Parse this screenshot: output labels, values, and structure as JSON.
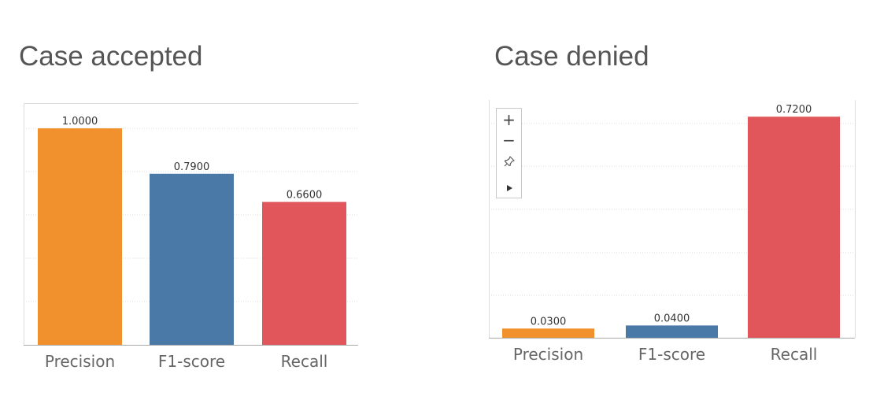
{
  "chart_data": [
    {
      "type": "bar",
      "title": "Case accepted",
      "categories": [
        "Precision",
        "F1-score",
        "Recall"
      ],
      "values": [
        1.0,
        0.79,
        0.66
      ],
      "value_labels": [
        "1.0000",
        "0.7900",
        "0.6600"
      ],
      "colors": [
        "#f0912e",
        "#4a78a7",
        "#e1565a"
      ],
      "ylim": [
        0,
        1.0
      ],
      "grid": true
    },
    {
      "type": "bar",
      "title": "Case denied",
      "categories": [
        "Precision",
        "F1-score",
        "Recall"
      ],
      "values": [
        0.03,
        0.04,
        0.72
      ],
      "value_labels": [
        "0.0300",
        "0.0400",
        "0.7200"
      ],
      "colors": [
        "#f0912e",
        "#4a78a7",
        "#e1565a"
      ],
      "ylim": [
        0,
        1.0
      ],
      "grid": true
    }
  ],
  "toolbar": {
    "icons": [
      "plus-icon",
      "minus-icon",
      "pin-icon",
      "play-icon"
    ]
  }
}
